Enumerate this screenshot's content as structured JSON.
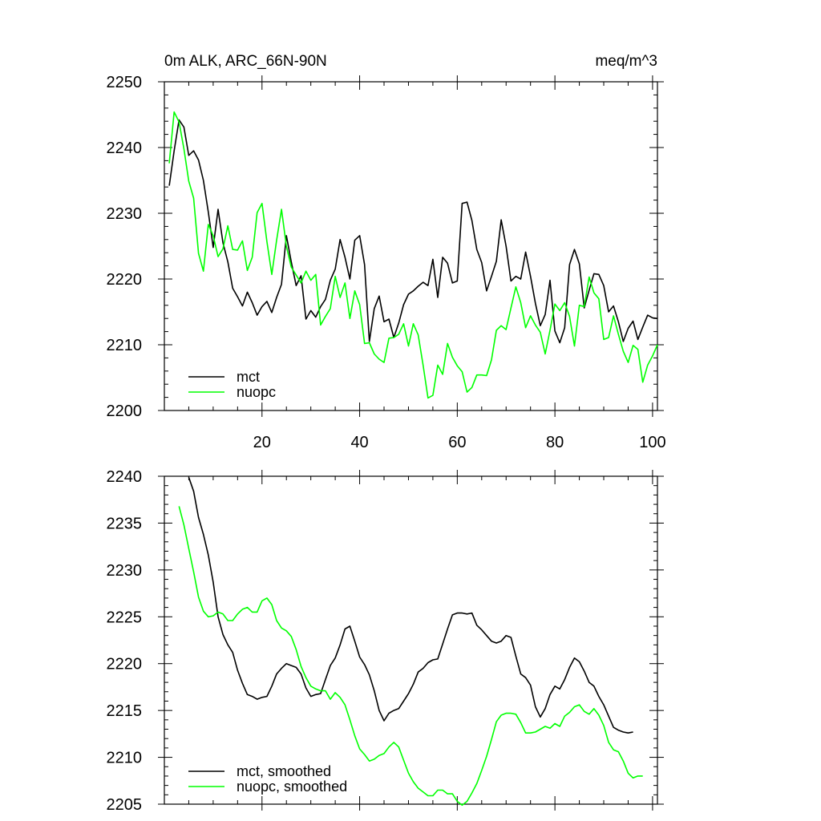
{
  "page": {
    "title": "0m ALK, ARC_66N-90N",
    "units": "meq/m^3"
  },
  "colors": {
    "mct": "#000000",
    "nuopc": "#00ff00",
    "frame": "#000000"
  },
  "chart_data": [
    {
      "type": "line",
      "title": "0m ALK, ARC_66N-90N",
      "units": "meq/m^3",
      "xlabel": "",
      "ylabel": "",
      "xlim": [
        0,
        101
      ],
      "ylim": [
        2200,
        2250
      ],
      "xticks": [
        20,
        40,
        60,
        80,
        100
      ],
      "yticks": [
        2200,
        2210,
        2220,
        2230,
        2240,
        2250
      ],
      "legend_position": "bottom-left",
      "x": [
        1,
        2,
        3,
        4,
        5,
        6,
        7,
        8,
        9,
        10,
        11,
        12,
        13,
        14,
        15,
        16,
        17,
        18,
        19,
        20,
        21,
        22,
        23,
        24,
        25,
        26,
        27,
        28,
        29,
        30,
        31,
        32,
        33,
        34,
        35,
        36,
        37,
        38,
        39,
        40,
        41,
        42,
        43,
        44,
        45,
        46,
        47,
        48,
        49,
        50,
        51,
        52,
        53,
        54,
        55,
        56,
        57,
        58,
        59,
        60,
        61,
        62,
        63,
        64,
        65,
        66,
        67,
        68,
        69,
        70,
        71,
        72,
        73,
        74,
        75,
        76,
        77,
        78,
        79,
        80,
        81,
        82,
        83,
        84,
        85,
        86,
        87,
        88,
        89,
        90,
        91,
        92,
        93,
        94,
        95,
        96,
        97,
        98,
        99,
        100,
        101
      ],
      "series": [
        {
          "name": "mct",
          "color": "#000000",
          "values": [
            2234.2,
            2239.5,
            2244.2,
            2243.1,
            2238.8,
            2239.5,
            2238.1,
            2235.0,
            2230.2,
            2224.8,
            2230.6,
            2225.5,
            2222.6,
            2218.6,
            2217.3,
            2215.9,
            2218.0,
            2216.4,
            2214.5,
            2215.8,
            2216.6,
            2214.9,
            2217.2,
            2219.2,
            2226.6,
            2222.6,
            2219.0,
            2220.5,
            2213.9,
            2215.2,
            2214.2,
            2215.8,
            2216.9,
            2219.8,
            2221.5,
            2226.0,
            2223.3,
            2220.0,
            2225.9,
            2226.6,
            2222.2,
            2210.5,
            2215.5,
            2217.4,
            2213.5,
            2213.9,
            2211.1,
            2213.3,
            2216.1,
            2217.7,
            2218.2,
            2218.9,
            2219.5,
            2219.0,
            2223.0,
            2217.2,
            2223.3,
            2222.4,
            2219.4,
            2219.7,
            2231.5,
            2231.7,
            2228.9,
            2224.5,
            2222.5,
            2218.2,
            2220.4,
            2222.7,
            2229.0,
            2225.0,
            2219.7,
            2220.4,
            2220.0,
            2224.1,
            2220.4,
            2216.3,
            2212.9,
            2214.6,
            2219.8,
            2212.1,
            2210.3,
            2212.6,
            2222.2,
            2224.5,
            2222.3,
            2215.6,
            2218.3,
            2220.8,
            2220.7,
            2219.0,
            2215.0,
            2215.9,
            2213.5,
            2210.5,
            2212.5,
            2213.6,
            2210.8,
            2212.7,
            2214.5,
            2214.1,
            2214.0
          ]
        },
        {
          "name": "nuopc",
          "color": "#00ff00",
          "values": [
            2237.6,
            2245.4,
            2243.9,
            2239.8,
            2234.9,
            2232.3,
            2223.9,
            2221.2,
            2228.3,
            2226.6,
            2223.4,
            2224.6,
            2228.1,
            2224.5,
            2224.4,
            2225.8,
            2221.3,
            2223.3,
            2230.1,
            2231.5,
            2225.7,
            2220.7,
            2225.9,
            2230.6,
            2225.0,
            2221.8,
            2220.6,
            2219.4,
            2221.2,
            2219.8,
            2220.7,
            2213.0,
            2214.3,
            2215.5,
            2220.4,
            2217.2,
            2219.4,
            2214.0,
            2218.2,
            2216.1,
            2210.2,
            2210.3,
            2208.6,
            2207.8,
            2207.3,
            2211.0,
            2211.1,
            2211.6,
            2213.2,
            2209.8,
            2213.2,
            2211.5,
            2206.9,
            2201.9,
            2202.3,
            2206.9,
            2205.5,
            2210.2,
            2208.1,
            2206.8,
            2205.9,
            2202.8,
            2203.5,
            2205.4,
            2205.4,
            2205.3,
            2207.7,
            2212.2,
            2212.9,
            2212.3,
            2215.6,
            2218.8,
            2216.4,
            2212.6,
            2214.4,
            2213.0,
            2211.9,
            2208.6,
            2212.2,
            2216.2,
            2215.2,
            2216.4,
            2214.3,
            2209.8,
            2216.0,
            2215.8,
            2220.3,
            2217.9,
            2217.0,
            2210.8,
            2211.1,
            2214.4,
            2211.6,
            2209.0,
            2207.3,
            2209.9,
            2209.3,
            2204.3,
            2206.9,
            2208.3,
            2210.0
          ]
        }
      ]
    },
    {
      "type": "line",
      "title": "",
      "xlabel": "",
      "ylabel": "",
      "xlim": [
        0,
        101
      ],
      "ylim": [
        2205,
        2240
      ],
      "xticks": [
        20,
        40,
        60,
        80,
        100
      ],
      "yticks": [
        2205,
        2210,
        2215,
        2220,
        2225,
        2230,
        2235,
        2240
      ],
      "legend_position": "bottom-left",
      "x": [
        3,
        4,
        5,
        6,
        7,
        8,
        9,
        10,
        11,
        12,
        13,
        14,
        15,
        16,
        17,
        18,
        19,
        20,
        21,
        22,
        23,
        24,
        25,
        26,
        27,
        28,
        29,
        30,
        31,
        32,
        33,
        34,
        35,
        36,
        37,
        38,
        39,
        40,
        41,
        42,
        43,
        44,
        45,
        46,
        47,
        48,
        49,
        50,
        51,
        52,
        53,
        54,
        55,
        56,
        57,
        58,
        59,
        60,
        61,
        62,
        63,
        64,
        65,
        66,
        67,
        68,
        69,
        70,
        71,
        72,
        73,
        74,
        75,
        76,
        77,
        78,
        79,
        80,
        81,
        82,
        83,
        84,
        85,
        86,
        87,
        88,
        89,
        90,
        91,
        92,
        93,
        94,
        95,
        96,
        97,
        98,
        99
      ],
      "series": [
        {
          "name": "mct, smoothed",
          "color": "#000000",
          "values": [
            null,
            2239.8,
            2239.9,
            2238.4,
            2235.6,
            2233.8,
            2231.6,
            2228.7,
            2225.0,
            2223.1,
            2222.0,
            2221.2,
            2219.3,
            2217.9,
            2216.7,
            2216.5,
            2216.2,
            2216.4,
            2216.5,
            2217.6,
            2218.9,
            2219.5,
            2220.0,
            2219.8,
            2219.6,
            2218.9,
            2217.4,
            2216.5,
            2216.7,
            2216.8,
            2218.3,
            2219.8,
            2220.6,
            2222.0,
            2223.7,
            2224.0,
            2222.4,
            2220.7,
            2219.9,
            2218.8,
            2217.1,
            2215.0,
            2213.9,
            2214.7,
            2215.0,
            2215.2,
            2216.0,
            2216.8,
            2217.8,
            2219.1,
            2219.5,
            2220.1,
            2220.4,
            2220.5,
            2222.1,
            2223.7,
            2225.2,
            2225.4,
            2225.4,
            2225.3,
            2225.4,
            2224.1,
            2223.6,
            2223.0,
            2222.4,
            2222.2,
            2222.4,
            2223.0,
            2222.8,
            2220.8,
            2218.9,
            2218.5,
            2217.7,
            2215.4,
            2214.3,
            2215.2,
            2216.7,
            2217.6,
            2217.3,
            2218.3,
            2219.6,
            2220.6,
            2220.2,
            2219.2,
            2218.0,
            2217.6,
            2216.5,
            2215.6,
            2214.4,
            2213.2,
            2212.9,
            2212.7,
            2212.6,
            2212.7,
            null,
            null,
            null
          ],
          "visible_from": 5
        },
        {
          "name": "nuopc, smoothed",
          "color": "#00ff00",
          "values": [
            2236.8,
            2234.8,
            2232.3,
            2229.8,
            2227.1,
            2225.6,
            2225.0,
            2225.1,
            2225.5,
            2225.3,
            2224.6,
            2224.6,
            2225.3,
            2225.8,
            2226.0,
            2225.5,
            2225.5,
            2226.7,
            2227.0,
            2226.3,
            2224.6,
            2223.8,
            2223.5,
            2222.9,
            2221.5,
            2219.7,
            2218.5,
            2217.6,
            2217.3,
            2217.1,
            2217.1,
            2216.2,
            2216.9,
            2216.4,
            2215.6,
            2214.0,
            2212.3,
            2210.9,
            2210.3,
            2209.6,
            2209.8,
            2210.2,
            2210.4,
            2211.1,
            2211.6,
            2211.1,
            2209.7,
            2208.3,
            2207.4,
            2206.7,
            2206.3,
            2205.9,
            2205.9,
            2206.5,
            2206.5,
            2206.1,
            2206.1,
            2205.3,
            2204.9,
            2205.3,
            2206.2,
            2207.2,
            2208.6,
            2210.1,
            2211.9,
            2213.8,
            2214.5,
            2214.7,
            2214.7,
            2214.6,
            2213.7,
            2212.6,
            2212.6,
            2212.7,
            2213.0,
            2213.3,
            2213.1,
            2213.6,
            2213.3,
            2214.4,
            2214.8,
            2215.4,
            2215.6,
            2214.9,
            2214.6,
            2215.2,
            2214.5,
            2213.4,
            2211.6,
            2210.8,
            2210.6,
            2209.6,
            2208.3,
            2207.8,
            2208.0,
            2208.0,
            null
          ]
        }
      ]
    }
  ]
}
